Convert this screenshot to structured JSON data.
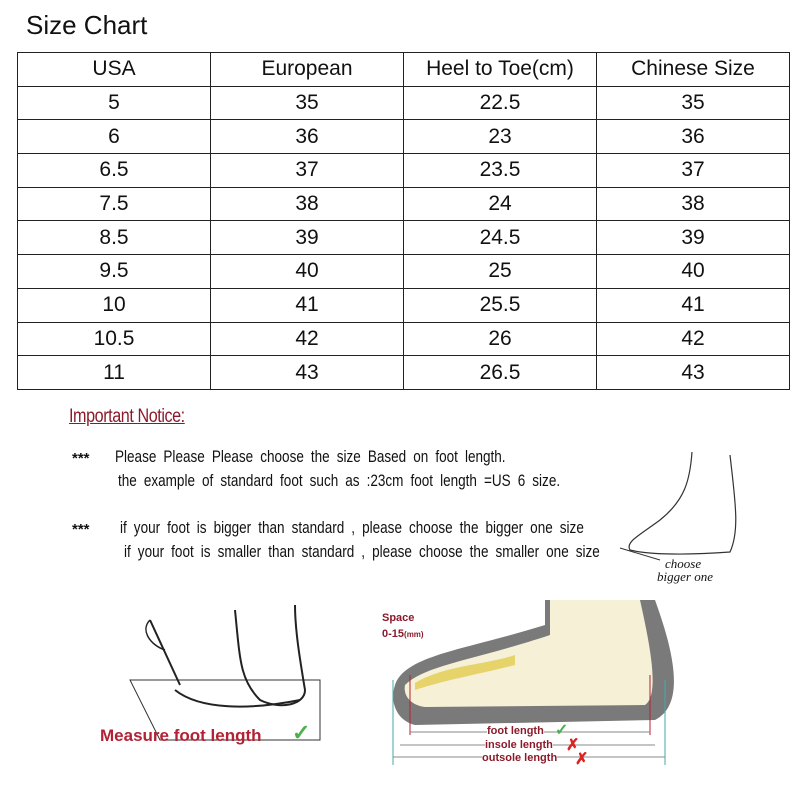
{
  "title": "Size Chart",
  "table": {
    "headers": [
      "USA",
      "European",
      "Heel to Toe(cm)",
      "Chinese Size"
    ],
    "rows": [
      [
        "5",
        "35",
        "22.5",
        "35"
      ],
      [
        "6",
        "36",
        "23",
        "36"
      ],
      [
        "6.5",
        "37",
        "23.5",
        "37"
      ],
      [
        "7.5",
        "38",
        "24",
        "38"
      ],
      [
        "8.5",
        "39",
        "24.5",
        "39"
      ],
      [
        "9.5",
        "40",
        "25",
        "40"
      ],
      [
        "10",
        "41",
        "25.5",
        "41"
      ],
      [
        "10.5",
        "42",
        "26",
        "42"
      ],
      [
        "11",
        "43",
        "26.5",
        "43"
      ]
    ]
  },
  "notice": {
    "heading": "Important Notice:",
    "bullet": "***",
    "lines": [
      "Please Please Please choose the size Based on foot length.",
      "the example of standard foot such as :23cm foot length =US 6 size.",
      "if your foot is bigger than standard , please choose the bigger one size",
      "if your foot is smaller than standard , please choose the smaller one size"
    ],
    "foot_caption_1": "choose",
    "foot_caption_2": "bigger one"
  },
  "measure": {
    "label": "Measure foot length"
  },
  "shoe": {
    "space_label": "Space",
    "space_range": "0-15",
    "space_unit": "(mm)",
    "foot_length": "foot length",
    "insole_length": "insole length",
    "outsole_length": "outsole length"
  },
  "colors": {
    "accent": "#b22234",
    "check": "#4caf50"
  }
}
